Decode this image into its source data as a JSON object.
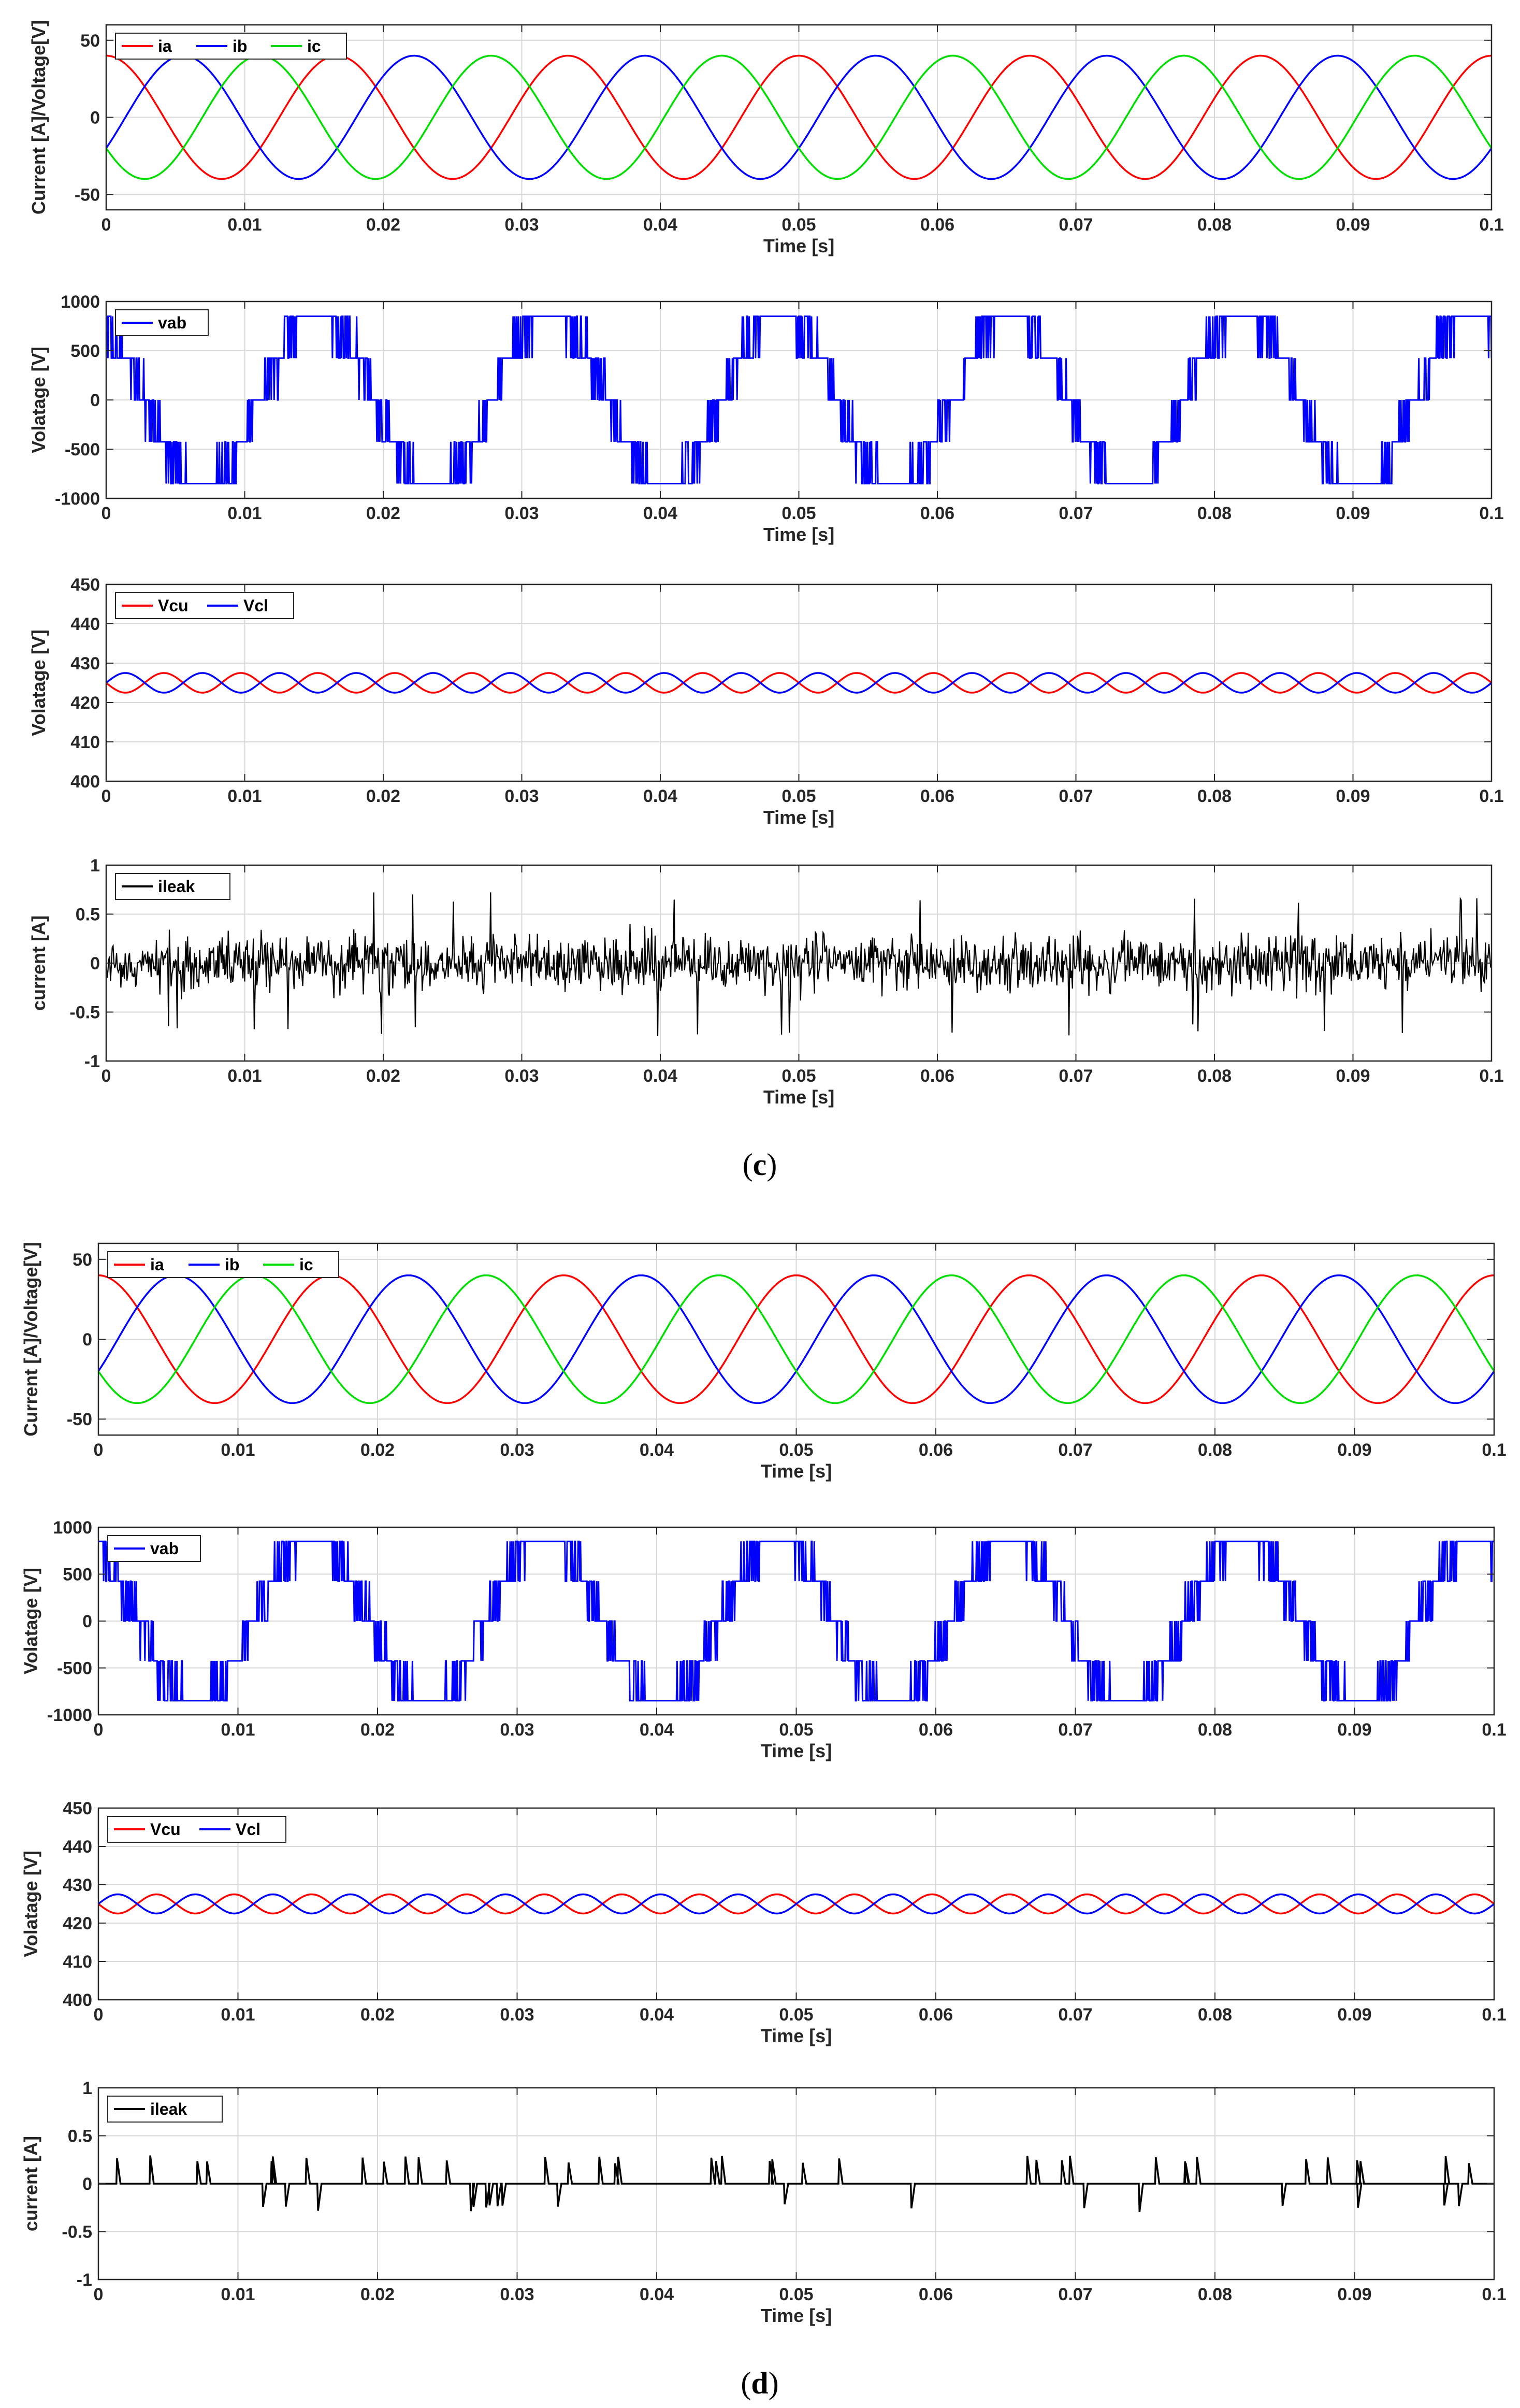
{
  "figure": {
    "panels": [
      {
        "label_open": "(",
        "label_letter": "c",
        "label_close": ")"
      },
      {
        "label_open": "(",
        "label_letter": "d",
        "label_close": ")"
      }
    ]
  },
  "chart_data": [
    {
      "type": "line",
      "panel": "c",
      "ylabel": "Current [A]/Voltage[V]",
      "xlabel": "Time [s]",
      "xlim": [
        0,
        0.1
      ],
      "ylim": [
        -60,
        60
      ],
      "xticks": [
        0,
        0.01,
        0.02,
        0.03,
        0.04,
        0.05,
        0.06,
        0.07,
        0.08,
        0.09,
        0.1
      ],
      "yticks": [
        -50,
        0,
        50
      ],
      "grid": true,
      "legend": "top-left",
      "series": [
        {
          "name": "ia",
          "color": "#ff0000",
          "waveform": "sine",
          "amplitude": 40,
          "frequency_hz": 60,
          "phase_deg": 90
        },
        {
          "name": "ib",
          "color": "#0000ff",
          "waveform": "sine",
          "amplitude": 40,
          "frequency_hz": 60,
          "phase_deg": -30
        },
        {
          "name": "ic",
          "color": "#00dd00",
          "waveform": "sine",
          "amplitude": 40,
          "frequency_hz": 60,
          "phase_deg": 210
        }
      ]
    },
    {
      "type": "line",
      "panel": "c",
      "ylabel": "Volatage [V]",
      "xlabel": "Time [s]",
      "xlim": [
        0,
        0.1
      ],
      "ylim": [
        -1000,
        1000
      ],
      "xticks": [
        0,
        0.01,
        0.02,
        0.03,
        0.04,
        0.05,
        0.06,
        0.07,
        0.08,
        0.09,
        0.1
      ],
      "yticks": [
        -1000,
        -500,
        0,
        500,
        1000
      ],
      "grid": true,
      "legend": "top-left",
      "series": [
        {
          "name": "vab",
          "color": "#0000ff",
          "waveform": "multilevel-pwm",
          "frequency_hz": 60,
          "phase_deg": 120,
          "levels": [
            -850,
            -425,
            0,
            425,
            850
          ]
        }
      ]
    },
    {
      "type": "line",
      "panel": "c",
      "ylabel": "Volatage [V]",
      "xlabel": "Time [s]",
      "xlim": [
        0,
        0.1
      ],
      "ylim": [
        400,
        450
      ],
      "xticks": [
        0,
        0.01,
        0.02,
        0.03,
        0.04,
        0.05,
        0.06,
        0.07,
        0.08,
        0.09,
        0.1
      ],
      "yticks": [
        400,
        410,
        420,
        430,
        440,
        450
      ],
      "grid": true,
      "legend": "top-left",
      "series": [
        {
          "name": "Vcu",
          "color": "#ff0000",
          "waveform": "ripple",
          "mean": 425,
          "amplitude": 2.5,
          "frequency_hz": 180,
          "phase_deg": 180
        },
        {
          "name": "Vcl",
          "color": "#0000ff",
          "waveform": "ripple",
          "mean": 425,
          "amplitude": 2.5,
          "frequency_hz": 180,
          "phase_deg": 0
        }
      ]
    },
    {
      "type": "line",
      "panel": "c",
      "ylabel": "current [A]",
      "xlabel": "Time [s]",
      "xlim": [
        0,
        0.1
      ],
      "ylim": [
        -1,
        1
      ],
      "xticks": [
        0,
        0.01,
        0.02,
        0.03,
        0.04,
        0.05,
        0.06,
        0.07,
        0.08,
        0.09,
        0.1
      ],
      "yticks": [
        -1,
        -0.5,
        0,
        0.5,
        1
      ],
      "grid": true,
      "legend": "top-left",
      "series": [
        {
          "name": "ileak",
          "color": "#000000",
          "waveform": "noise",
          "amplitude": 0.75,
          "typical_amplitude": 0.3
        }
      ]
    },
    {
      "type": "line",
      "panel": "d",
      "ylabel": "Current [A]/Voltage[V]",
      "xlabel": "Time [s]",
      "xlim": [
        0,
        0.1
      ],
      "ylim": [
        -60,
        60
      ],
      "xticks": [
        0,
        0.01,
        0.02,
        0.03,
        0.04,
        0.05,
        0.06,
        0.07,
        0.08,
        0.09,
        0.1
      ],
      "yticks": [
        -50,
        0,
        50
      ],
      "grid": true,
      "legend": "top-left",
      "series": [
        {
          "name": "ia",
          "color": "#ff0000",
          "waveform": "sine",
          "amplitude": 40,
          "frequency_hz": 60,
          "phase_deg": 90
        },
        {
          "name": "ib",
          "color": "#0000ff",
          "waveform": "sine",
          "amplitude": 40,
          "frequency_hz": 60,
          "phase_deg": -30
        },
        {
          "name": "ic",
          "color": "#00dd00",
          "waveform": "sine",
          "amplitude": 40,
          "frequency_hz": 60,
          "phase_deg": 210
        }
      ]
    },
    {
      "type": "line",
      "panel": "d",
      "ylabel": "Volatage [V]",
      "xlabel": "Time [s]",
      "xlim": [
        0,
        0.1
      ],
      "ylim": [
        -1000,
        1000
      ],
      "xticks": [
        0,
        0.01,
        0.02,
        0.03,
        0.04,
        0.05,
        0.06,
        0.07,
        0.08,
        0.09,
        0.1
      ],
      "yticks": [
        -1000,
        -500,
        0,
        500,
        1000
      ],
      "grid": true,
      "legend": "top-left",
      "series": [
        {
          "name": "vab",
          "color": "#0000ff",
          "waveform": "multilevel-pwm",
          "frequency_hz": 60,
          "phase_deg": 120,
          "levels": [
            -850,
            -425,
            0,
            425,
            850
          ]
        }
      ]
    },
    {
      "type": "line",
      "panel": "d",
      "ylabel": "Volatage [V]",
      "xlabel": "Time [s]",
      "xlim": [
        0,
        0.1
      ],
      "ylim": [
        400,
        450
      ],
      "xticks": [
        0,
        0.01,
        0.02,
        0.03,
        0.04,
        0.05,
        0.06,
        0.07,
        0.08,
        0.09,
        0.1
      ],
      "yticks": [
        400,
        410,
        420,
        430,
        440,
        450
      ],
      "grid": true,
      "legend": "top-left",
      "series": [
        {
          "name": "Vcu",
          "color": "#ff0000",
          "waveform": "ripple",
          "mean": 425,
          "amplitude": 2.5,
          "frequency_hz": 180,
          "phase_deg": 180
        },
        {
          "name": "Vcl",
          "color": "#0000ff",
          "waveform": "ripple",
          "mean": 425,
          "amplitude": 2.5,
          "frequency_hz": 180,
          "phase_deg": 0
        }
      ]
    },
    {
      "type": "line",
      "panel": "d",
      "ylabel": "current [A]",
      "xlabel": "Time [s]",
      "xlim": [
        0,
        0.1
      ],
      "ylim": [
        -1,
        1
      ],
      "xticks": [
        0,
        0.01,
        0.02,
        0.03,
        0.04,
        0.05,
        0.06,
        0.07,
        0.08,
        0.09,
        0.1
      ],
      "yticks": [
        -1,
        -0.5,
        0,
        0.5,
        1
      ],
      "grid": true,
      "legend": "top-left",
      "series": [
        {
          "name": "ileak",
          "color": "#000000",
          "waveform": "spikes",
          "baseline": 0,
          "spike_amplitude": 0.3,
          "spike_count": 56
        }
      ]
    }
  ]
}
